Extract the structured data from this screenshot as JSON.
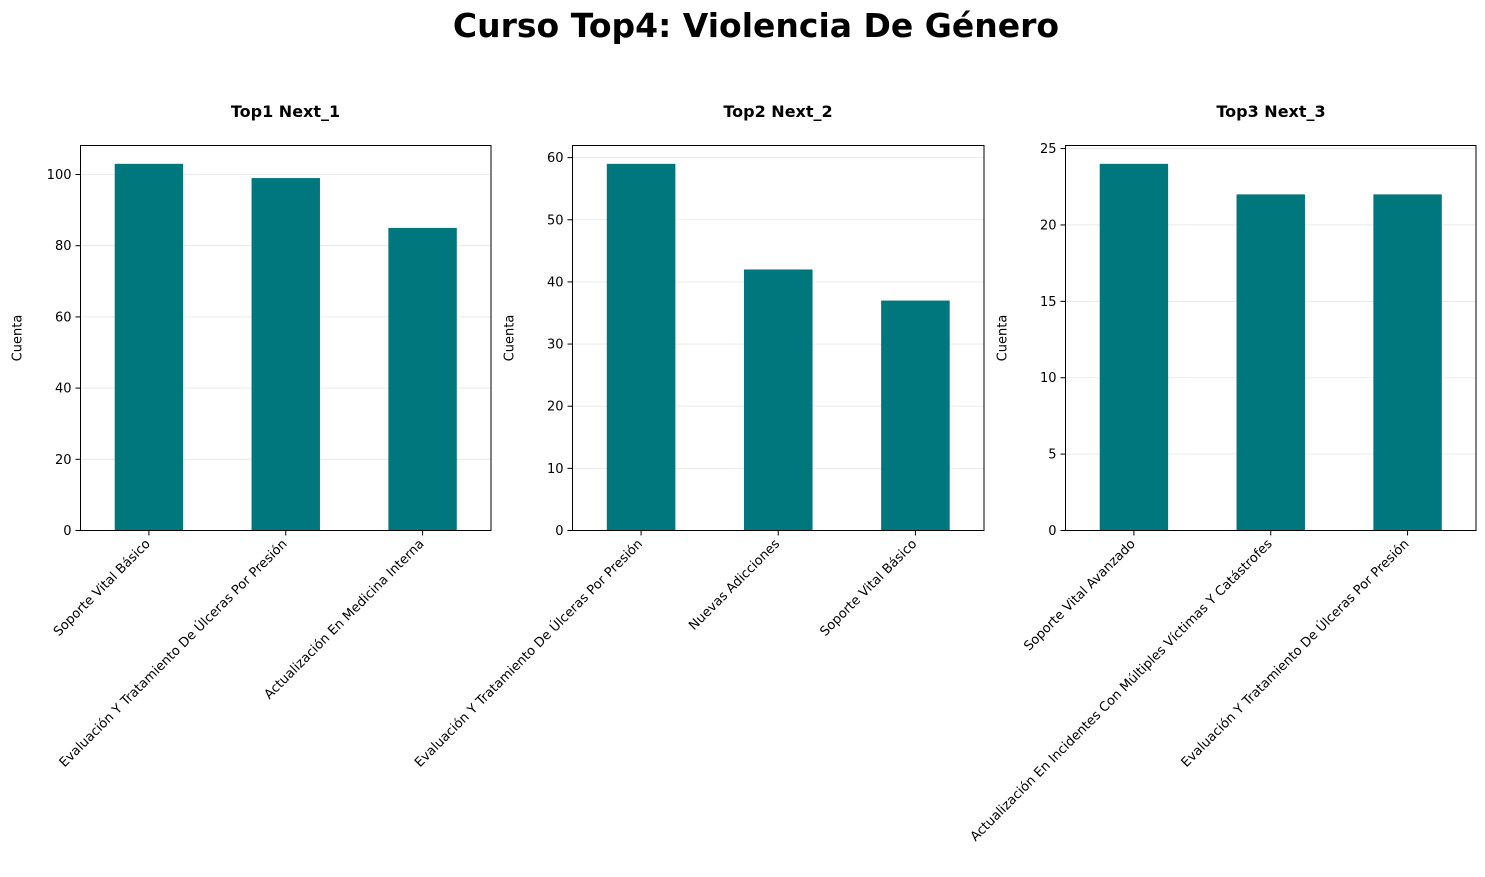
{
  "title": "Curso Top4: Violencia De Género",
  "bar_color": "#00767d",
  "grid_color": "#e6e6e6",
  "chart_data": [
    {
      "type": "bar",
      "title": "Top1 Next_1",
      "xlabel": "",
      "ylabel": "Cuenta",
      "categories": [
        "Soporte Vital Básico",
        "Evaluación Y Tratamiento De Úlceras Por Presión",
        "Actualización En Medicina Interna"
      ],
      "values": [
        103,
        99,
        85
      ],
      "ylim": [
        0,
        108.15
      ],
      "yticks": [
        0,
        20,
        40,
        60,
        80,
        100
      ],
      "grid": true,
      "legend": "none"
    },
    {
      "type": "bar",
      "title": "Top2 Next_2",
      "xlabel": "",
      "ylabel": "Cuenta",
      "categories": [
        "Evaluación Y Tratamiento De Úlceras Por Presión",
        "Nuevas Adicciones",
        "Soporte Vital Básico"
      ],
      "values": [
        59,
        42,
        37
      ],
      "ylim": [
        0,
        61.95
      ],
      "yticks": [
        0,
        10,
        20,
        30,
        40,
        50,
        60
      ],
      "grid": true,
      "legend": "none"
    },
    {
      "type": "bar",
      "title": "Top3 Next_3",
      "xlabel": "",
      "ylabel": "Cuenta",
      "categories": [
        "Soporte Vital Avanzado",
        "Actualización En Incidentes Con Múltiples Víctimas Y Catástrofes",
        "Evaluación Y Tratamiento De Úlceras Por Presión"
      ],
      "values": [
        24,
        22,
        22
      ],
      "ylim": [
        0,
        25.2
      ],
      "yticks": [
        0,
        5,
        10,
        15,
        20,
        25
      ],
      "grid": true,
      "legend": "none"
    }
  ]
}
